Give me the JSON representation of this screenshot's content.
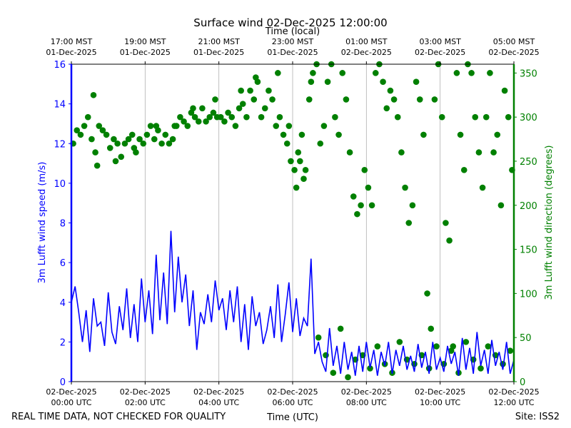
{
  "chart_data": {
    "type": "line",
    "title": "Surface wind 02-Dec-2025 12:00:00",
    "xlabel": "Time (UTC)",
    "x2label": "Time (local)",
    "ylabel": "3m Lufft wind speed (m/s)",
    "y2label": "3m Lufft wind direction (degrees)",
    "footer_left": "REAL TIME DATA, NOT CHECKED FOR QUALITY",
    "footer_right": "Site: ISS2",
    "xlim_hours": [
      0,
      12
    ],
    "ylim": [
      0,
      16
    ],
    "y2lim": [
      0,
      360
    ],
    "grid": "vertical",
    "colors": {
      "speed": "#0000ff",
      "direction": "#008000",
      "grid": "#b0b0b0",
      "axis": "#000000"
    },
    "x_ticks": [
      {
        "hour": 0,
        "line1": "02-Dec-2025",
        "line2": "00:00 UTC"
      },
      {
        "hour": 2,
        "line1": "02-Dec-2025",
        "line2": "02:00 UTC"
      },
      {
        "hour": 4,
        "line1": "02-Dec-2025",
        "line2": "04:00 UTC"
      },
      {
        "hour": 6,
        "line1": "02-Dec-2025",
        "line2": "06:00 UTC"
      },
      {
        "hour": 8,
        "line1": "02-Dec-2025",
        "line2": "08:00 UTC"
      },
      {
        "hour": 10,
        "line1": "02-Dec-2025",
        "line2": "10:00 UTC"
      },
      {
        "hour": 12,
        "line1": "02-Dec-2025",
        "line2": "12:00 UTC"
      }
    ],
    "x2_ticks": [
      {
        "hour": 0,
        "line1": "17:00 MST",
        "line2": "01-Dec-2025"
      },
      {
        "hour": 2,
        "line1": "19:00 MST",
        "line2": "01-Dec-2025"
      },
      {
        "hour": 4,
        "line1": "21:00 MST",
        "line2": "01-Dec-2025"
      },
      {
        "hour": 6,
        "line1": "23:00 MST",
        "line2": "01-Dec-2025"
      },
      {
        "hour": 8,
        "line1": "01:00 MST",
        "line2": "02-Dec-2025"
      },
      {
        "hour": 10,
        "line1": "03:00 MST",
        "line2": "02-Dec-2025"
      },
      {
        "hour": 12,
        "line1": "05:00 MST",
        "line2": "02-Dec-2025"
      }
    ],
    "y_ticks": [
      0,
      2,
      4,
      6,
      8,
      10,
      12,
      14,
      16
    ],
    "y2_ticks": [
      0,
      50,
      100,
      150,
      200,
      250,
      300,
      350
    ],
    "series": [
      {
        "name": "3m Lufft wind speed (m/s)",
        "type": "line",
        "x": [
          0.0,
          0.1,
          0.2,
          0.3,
          0.4,
          0.5,
          0.6,
          0.7,
          0.8,
          0.9,
          1.0,
          1.1,
          1.2,
          1.3,
          1.4,
          1.5,
          1.6,
          1.7,
          1.8,
          1.9,
          2.0,
          2.1,
          2.2,
          2.3,
          2.4,
          2.5,
          2.6,
          2.7,
          2.8,
          2.9,
          3.0,
          3.1,
          3.2,
          3.3,
          3.4,
          3.5,
          3.6,
          3.7,
          3.8,
          3.9,
          4.0,
          4.1,
          4.2,
          4.3,
          4.4,
          4.5,
          4.6,
          4.7,
          4.8,
          4.9,
          5.0,
          5.1,
          5.2,
          5.3,
          5.4,
          5.5,
          5.6,
          5.7,
          5.8,
          5.9,
          6.0,
          6.1,
          6.2,
          6.3,
          6.4,
          6.5,
          6.6,
          6.7,
          6.8,
          6.9,
          7.0,
          7.1,
          7.2,
          7.3,
          7.4,
          7.5,
          7.6,
          7.7,
          7.8,
          7.9,
          8.0,
          8.1,
          8.2,
          8.3,
          8.4,
          8.5,
          8.6,
          8.7,
          8.8,
          8.9,
          9.0,
          9.1,
          9.2,
          9.3,
          9.4,
          9.5,
          9.6,
          9.7,
          9.8,
          9.9,
          10.0,
          10.1,
          10.2,
          10.3,
          10.4,
          10.5,
          10.6,
          10.7,
          10.8,
          10.9,
          11.0,
          11.1,
          11.2,
          11.3,
          11.4,
          11.5,
          11.6,
          11.7,
          11.8,
          11.9,
          12.0
        ],
        "values": [
          4.0,
          4.8,
          3.5,
          2.0,
          3.6,
          1.5,
          4.2,
          2.8,
          3.0,
          1.8,
          4.5,
          2.5,
          1.9,
          3.8,
          2.6,
          4.7,
          2.2,
          3.9,
          2.0,
          5.2,
          3.0,
          4.6,
          2.4,
          6.4,
          3.1,
          5.5,
          2.9,
          7.6,
          3.5,
          6.3,
          4.0,
          5.4,
          2.8,
          4.6,
          1.6,
          3.5,
          2.9,
          4.4,
          3.0,
          5.1,
          3.6,
          4.2,
          2.6,
          4.6,
          3.0,
          4.8,
          2.0,
          3.9,
          1.6,
          4.3,
          2.8,
          3.5,
          1.9,
          2.6,
          3.8,
          2.2,
          4.9,
          2.0,
          3.4,
          5.0,
          2.5,
          4.2,
          2.3,
          3.2,
          2.8,
          6.2,
          1.4,
          2.0,
          1.0,
          0.5,
          2.7,
          0.8,
          1.8,
          0.4,
          2.0,
          0.6,
          1.5,
          0.3,
          1.8,
          0.5,
          2.0,
          0.7,
          1.6,
          0.3,
          1.5,
          0.8,
          2.0,
          0.4,
          1.6,
          0.8,
          1.8,
          0.6,
          1.3,
          0.5,
          1.9,
          0.7,
          1.5,
          0.4,
          2.0,
          0.6,
          1.2,
          0.5,
          1.8,
          0.9,
          1.5,
          0.3,
          2.2,
          0.6,
          1.7,
          0.4,
          2.5,
          0.8,
          1.6,
          0.4,
          2.1,
          0.8,
          1.5,
          0.6,
          2.0,
          0.4,
          1.1
        ]
      },
      {
        "name": "3m Lufft wind direction (degrees)",
        "type": "scatter",
        "x": [
          0.05,
          0.15,
          0.25,
          0.35,
          0.45,
          0.55,
          0.65,
          0.7,
          0.75,
          0.85,
          0.95,
          1.05,
          1.15,
          1.25,
          1.35,
          1.45,
          1.55,
          1.65,
          1.75,
          1.85,
          1.95,
          2.05,
          2.15,
          2.25,
          2.35,
          2.45,
          2.55,
          2.65,
          2.75,
          2.85,
          2.95,
          3.05,
          3.15,
          3.25,
          3.35,
          3.45,
          3.55,
          3.65,
          3.75,
          3.85,
          3.95,
          4.05,
          4.15,
          4.25,
          4.35,
          4.45,
          4.55,
          4.65,
          4.75,
          4.85,
          4.95,
          5.05,
          5.15,
          5.25,
          5.35,
          5.45,
          5.55,
          5.65,
          5.75,
          5.85,
          5.95,
          6.05,
          6.1,
          6.15,
          6.2,
          6.25,
          6.35,
          6.45,
          6.5,
          6.55,
          6.65,
          6.75,
          6.85,
          6.95,
          7.05,
          7.15,
          7.25,
          7.35,
          7.45,
          7.55,
          7.65,
          7.75,
          7.85,
          7.95,
          8.05,
          8.15,
          8.25,
          8.35,
          8.45,
          8.55,
          8.65,
          8.75,
          8.85,
          8.95,
          9.05,
          9.15,
          9.25,
          9.35,
          9.45,
          9.55,
          9.65,
          9.75,
          9.85,
          9.95,
          10.05,
          10.15,
          10.25,
          10.35,
          10.45,
          10.55,
          10.65,
          10.75,
          10.85,
          10.95,
          11.05,
          11.15,
          11.25,
          11.35,
          11.45,
          11.55,
          11.65,
          11.75,
          11.85,
          11.95,
          6.7,
          6.9,
          7.1,
          7.3,
          7.5,
          7.7,
          7.9,
          8.1,
          8.3,
          8.5,
          8.7,
          8.9,
          9.1,
          9.3,
          9.5,
          9.7,
          9.9,
          10.1,
          10.3,
          10.5,
          10.7,
          10.9,
          11.1,
          11.3,
          11.5,
          11.7,
          11.9,
          0.6,
          1.2,
          1.7,
          2.3,
          2.8,
          3.3,
          3.9,
          4.6,
          5.0,
          5.6,
          5.9,
          6.3
        ],
        "values": [
          270,
          285,
          280,
          290,
          300,
          275,
          260,
          245,
          290,
          285,
          280,
          265,
          275,
          270,
          255,
          270,
          275,
          280,
          260,
          275,
          270,
          280,
          290,
          275,
          285,
          270,
          280,
          270,
          275,
          290,
          300,
          295,
          290,
          305,
          300,
          295,
          310,
          295,
          300,
          305,
          300,
          300,
          295,
          305,
          300,
          290,
          310,
          315,
          300,
          330,
          320,
          340,
          300,
          310,
          330,
          320,
          290,
          300,
          280,
          270,
          250,
          240,
          220,
          260,
          250,
          280,
          240,
          320,
          340,
          350,
          360,
          270,
          290,
          340,
          360,
          300,
          280,
          350,
          320,
          260,
          210,
          190,
          200,
          240,
          220,
          200,
          350,
          360,
          340,
          310,
          330,
          320,
          300,
          260,
          220,
          180,
          200,
          340,
          320,
          280,
          100,
          60,
          320,
          360,
          300,
          180,
          160,
          40,
          350,
          280,
          240,
          360,
          350,
          300,
          260,
          220,
          300,
          350,
          260,
          280,
          200,
          330,
          300,
          240,
          50,
          30,
          10,
          60,
          5,
          25,
          30,
          15,
          40,
          20,
          10,
          45,
          25,
          20,
          30,
          15,
          40,
          20,
          35,
          10,
          45,
          25,
          15,
          40,
          30,
          20,
          35,
          325,
          250,
          265,
          290,
          290,
          310,
          320,
          330,
          345,
          350,
          290,
          230
        ]
      }
    ]
  }
}
